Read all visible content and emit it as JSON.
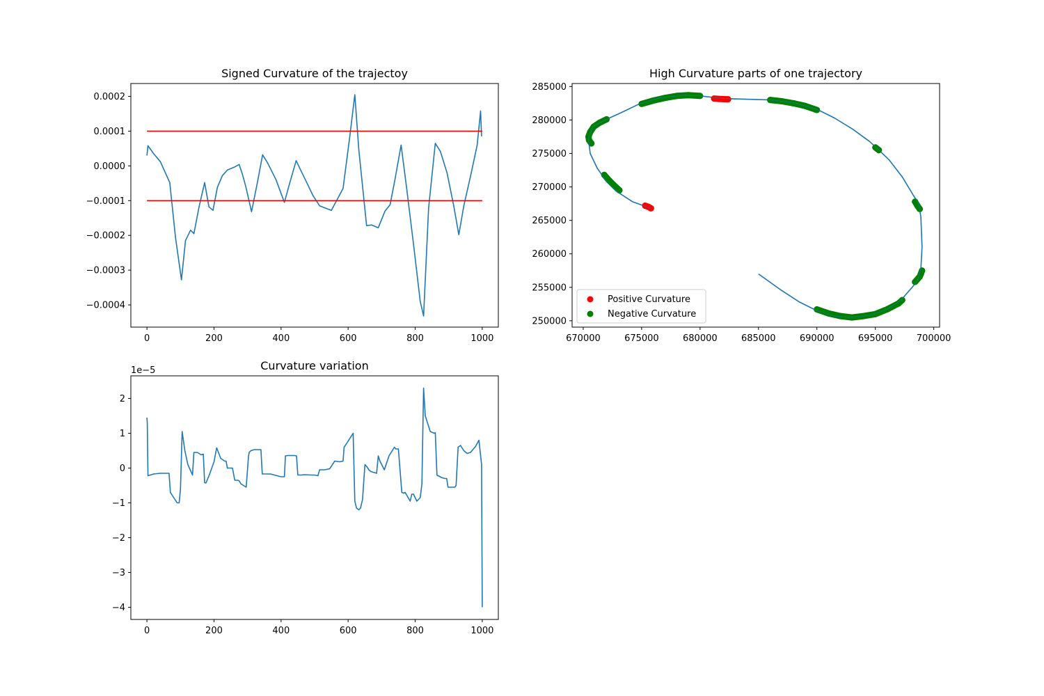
{
  "chart_data": [
    {
      "type": "line",
      "title": "Signed Curvature of the trajectoy",
      "xlabel": "",
      "ylabel": "",
      "xlim": [
        -48,
        1048
      ],
      "ylim": [
        -0.000464,
        0.000237
      ],
      "xticks": [
        0,
        200,
        400,
        600,
        800,
        1000
      ],
      "xtick_labels": [
        "0",
        "200",
        "400",
        "600",
        "800",
        "1000"
      ],
      "yticks": [
        -0.0004,
        -0.0003,
        -0.0002,
        -0.0001,
        0.0,
        0.0001,
        0.0002
      ],
      "ytick_labels": [
        "−0.0004",
        "−0.0003",
        "−0.0002",
        "−0.0001",
        "0.0000",
        "0.0001",
        "0.0002"
      ],
      "grid": false,
      "series": [
        {
          "color": "#1f77b4",
          "x": [
            0,
            3,
            20,
            40,
            68,
            85,
            103,
            115,
            130,
            140,
            155,
            172,
            185,
            197,
            210,
            225,
            240,
            260,
            275,
            285,
            295,
            312,
            330,
            345,
            360,
            385,
            410,
            425,
            445,
            460,
            475,
            495,
            515,
            550,
            585,
            605,
            620,
            632,
            655,
            670,
            690,
            710,
            725,
            740,
            758,
            775,
            795,
            815,
            825,
            840,
            860,
            875,
            895,
            915,
            930,
            945,
            965,
            985,
            995,
            998
          ],
          "y": [
            3e-05,
            5.8e-05,
            3.5e-05,
            1.2e-05,
            -4.8e-05,
            -0.000205,
            -0.000328,
            -0.000215,
            -0.000185,
            -0.000195,
            -0.00012,
            -4.8e-05,
            -0.000118,
            -0.000128,
            -6.2e-05,
            -2.8e-05,
            -1.2e-05,
            -4e-06,
            4e-06,
            -2.5e-05,
            -6e-05,
            -0.000132,
            -4.5e-05,
            3.2e-05,
            8e-06,
            -4e-05,
            -0.000105,
            -5.2e-05,
            1.5e-05,
            -1.5e-05,
            -4.5e-05,
            -8.5e-05,
            -0.000115,
            -0.000128,
            -6.5e-05,
            8.5e-05,
            0.000205,
            4.5e-05,
            -0.000172,
            -0.00017,
            -0.000178,
            -0.00013,
            -0.000112,
            -3.8e-05,
            6e-05,
            -6.8e-05,
            -0.000225,
            -0.00039,
            -0.000432,
            -0.000122,
            6.5e-05,
            4.2e-05,
            -2e-05,
            -0.000115,
            -0.000198,
            -0.000115,
            -3e-05,
            6e-05,
            0.000158,
            8.5e-05
          ]
        },
        {
          "color": "#ff0000",
          "x": [
            0,
            1000
          ],
          "y": [
            0.0001,
            0.0001
          ]
        },
        {
          "color": "#ff0000",
          "x": [
            0,
            1000
          ],
          "y": [
            -0.0001,
            -0.0001
          ]
        }
      ]
    },
    {
      "type": "scatter",
      "title": "High Curvature parts of one trajectory",
      "xlabel": "",
      "ylabel": "",
      "xlim": [
        669050,
        700500
      ],
      "ylim": [
        249050,
        285450
      ],
      "xticks": [
        670000,
        675000,
        680000,
        685000,
        690000,
        695000,
        700000
      ],
      "xtick_labels": [
        "670000",
        "675000",
        "680000",
        "685000",
        "690000",
        "695000",
        "700000"
      ],
      "yticks": [
        250000,
        255000,
        260000,
        265000,
        270000,
        275000,
        280000,
        285000
      ],
      "ytick_labels": [
        "250000",
        "255000",
        "260000",
        "265000",
        "270000",
        "275000",
        "280000",
        "285000"
      ],
      "grid": false,
      "legend": {
        "placement": "lower-left",
        "entries": [
          {
            "label": "Positive Curvature",
            "color": "#ff0000"
          },
          {
            "label": "Negative Curvature",
            "color": "#008000"
          }
        ]
      },
      "trajectory": {
        "color": "#1f77b4",
        "x": [
          675800,
          674200,
          672800,
          672000,
          671200,
          670600,
          670450,
          670800,
          672000,
          673500,
          674800,
          676500,
          678500,
          680000,
          682000,
          684000,
          686000,
          688000,
          690000,
          691500,
          693000,
          694500,
          695200,
          696200,
          697300,
          698300,
          698700,
          698900,
          699000,
          698900,
          698600,
          698200,
          697200,
          696000,
          694500,
          693000,
          691500,
          690000,
          688500,
          687000,
          685000
        ],
        "y": [
          266800,
          267800,
          269400,
          270800,
          272800,
          275000,
          277200,
          279000,
          280100,
          281300,
          282400,
          283300,
          283700,
          283600,
          283200,
          283100,
          283000,
          282600,
          281600,
          280300,
          278700,
          276800,
          275700,
          274000,
          271500,
          268600,
          267600,
          265500,
          261000,
          257800,
          256000,
          255100,
          253100,
          251700,
          250800,
          250500,
          250700,
          251500,
          252800,
          254500,
          257000
        ]
      },
      "series": [
        {
          "name": "Positive Curvature",
          "color": "#ff0000",
          "segments": [
            {
              "x": [
                681200,
                681600,
                682000,
                682400
              ],
              "y": [
                283200,
                283150,
                283120,
                283100
              ]
            },
            {
              "x": [
                675300,
                675600,
                675800
              ],
              "y": [
                267200,
                267000,
                266800
              ]
            }
          ]
        },
        {
          "name": "Negative Curvature",
          "color": "#008000",
          "segments": [
            {
              "x": [
                675000,
                676000,
                677000,
                678000,
                679000,
                680000
              ],
              "y": [
                282400,
                282900,
                283300,
                283600,
                283700,
                283600
              ]
            },
            {
              "x": [
                672000,
                671400,
                670900,
                670600,
                670450,
                670500,
                670700
              ],
              "y": [
                280100,
                279600,
                279000,
                278200,
                277500,
                277000,
                276500
              ]
            },
            {
              "x": [
                671800,
                672200,
                672600,
                673100
              ],
              "y": [
                271800,
                271000,
                270300,
                269500
              ]
            },
            {
              "x": [
                686000,
                687000,
                688000,
                689000,
                690000
              ],
              "y": [
                283000,
                282800,
                282500,
                282100,
                281500
              ]
            },
            {
              "x": [
                695000,
                695300
              ],
              "y": [
                275900,
                275500
              ]
            },
            {
              "x": [
                698400,
                698600,
                698800
              ],
              "y": [
                267800,
                267200,
                266700
              ]
            },
            {
              "x": [
                698400,
                698600,
                698800,
                698900,
                699000
              ],
              "y": [
                255800,
                256200,
                256600,
                257000,
                257500
              ]
            },
            {
              "x": [
                690000,
                691000,
                692000,
                693000,
                694000,
                695000,
                696000,
                697000,
                697300
              ],
              "y": [
                251700,
                251100,
                250700,
                250500,
                250700,
                251000,
                251700,
                252600,
                253100
              ]
            }
          ]
        }
      ]
    },
    {
      "type": "line",
      "title": "Curvature variation",
      "xlabel": "",
      "ylabel": "",
      "offset_text": "1e−5",
      "xlim": [
        -48,
        1048
      ],
      "ylim": [
        -4.35,
        2.65
      ],
      "xticks": [
        0,
        200,
        400,
        600,
        800,
        1000
      ],
      "xtick_labels": [
        "0",
        "200",
        "400",
        "600",
        "800",
        "1000"
      ],
      "yticks": [
        -4,
        -3,
        -2,
        -1,
        0,
        1,
        2
      ],
      "ytick_labels": [
        "−4",
        "−3",
        "−2",
        "−1",
        "0",
        "1",
        "2"
      ],
      "grid": false,
      "series": [
        {
          "color": "#1f77b4",
          "x": [
            0,
            1,
            3,
            20,
            40,
            66,
            70,
            82,
            90,
            96,
            100,
            105,
            113,
            122,
            136,
            140,
            150,
            162,
            168,
            172,
            176,
            186,
            200,
            208,
            220,
            232,
            236,
            240,
            255,
            262,
            272,
            276,
            280,
            296,
            303,
            305,
            310,
            320,
            340,
            344,
            355,
            368,
            380,
            400,
            410,
            413,
            420,
            440,
            446,
            450,
            460,
            470,
            490,
            500,
            510,
            515,
            530,
            545,
            560,
            575,
            585,
            588,
            595,
            605,
            615,
            620,
            625,
            632,
            637,
            643,
            650,
            655,
            662,
            668,
            685,
            690,
            695,
            708,
            722,
            738,
            742,
            750,
            760,
            765,
            770,
            785,
            790,
            795,
            805,
            815,
            820,
            825,
            830,
            845,
            857,
            860,
            865,
            878,
            888,
            894,
            898,
            908,
            918,
            922,
            928,
            935,
            945,
            955,
            965,
            980,
            990,
            998,
            1000
          ],
          "y": [
            1.45,
            1.3,
            -0.22,
            -0.17,
            -0.15,
            -0.15,
            -0.7,
            -0.88,
            -1.0,
            -1.0,
            -0.6,
            1.05,
            0.5,
            0.1,
            -0.2,
            0.45,
            0.45,
            0.38,
            0.4,
            -0.42,
            -0.43,
            -0.2,
            0.18,
            0.58,
            0.28,
            0.2,
            0.2,
            0.0,
            0.0,
            -0.35,
            -0.35,
            -0.38,
            -0.45,
            -0.55,
            0.35,
            0.45,
            0.5,
            0.53,
            0.53,
            -0.17,
            -0.17,
            -0.17,
            -0.2,
            -0.25,
            -0.25,
            0.35,
            0.36,
            0.36,
            0.35,
            -0.2,
            -0.2,
            -0.19,
            -0.2,
            -0.2,
            -0.22,
            -0.05,
            -0.05,
            -0.02,
            0.2,
            0.18,
            0.2,
            0.6,
            0.7,
            0.85,
            1.0,
            -0.95,
            -1.15,
            -1.2,
            -1.15,
            -0.9,
            0.1,
            0.05,
            -0.05,
            -0.1,
            -0.15,
            0.35,
            0.2,
            -0.05,
            0.35,
            0.6,
            0.55,
            0.55,
            -0.7,
            -0.72,
            -0.7,
            -0.95,
            -0.75,
            -0.75,
            -0.95,
            -0.85,
            -0.45,
            2.3,
            1.5,
            1.05,
            1.0,
            1.02,
            -0.2,
            -0.27,
            -0.3,
            -0.3,
            -0.55,
            -0.55,
            -0.55,
            -0.5,
            0.6,
            0.65,
            0.5,
            0.42,
            0.45,
            0.62,
            0.8,
            0.1,
            -4.0
          ]
        }
      ]
    }
  ]
}
